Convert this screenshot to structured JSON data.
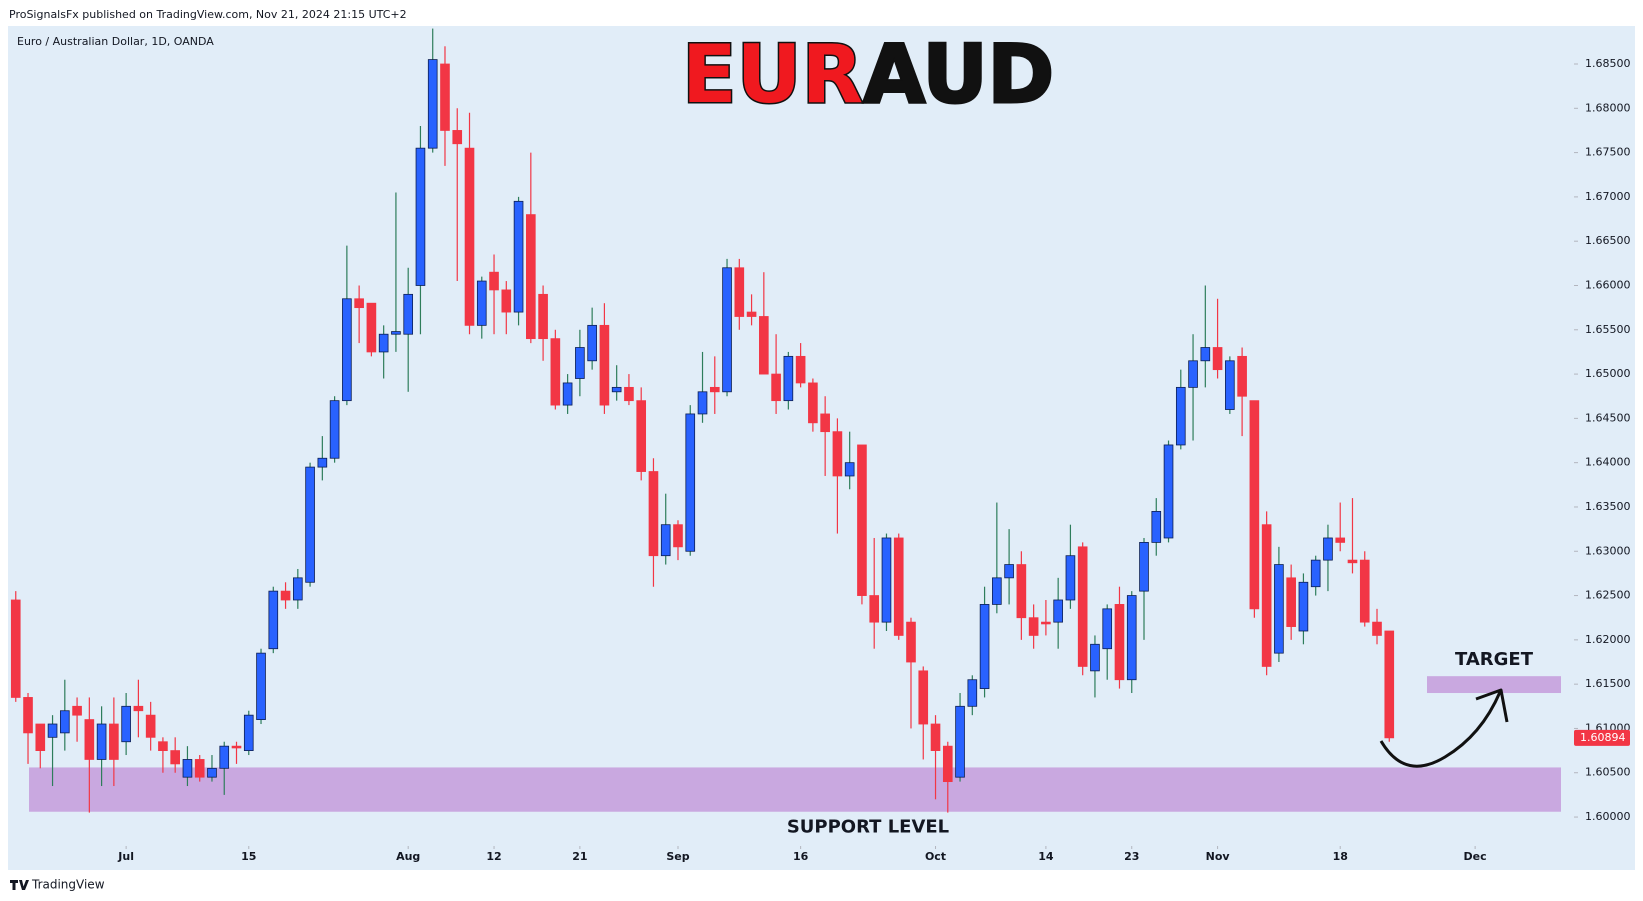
{
  "header": "ProSignalsFx published on TradingView.com, Nov 21, 2024 21:15 UTC+2",
  "footer": "TradingView",
  "chart_data": {
    "type": "candlestick",
    "symbol_label": "Euro / Australian Dollar, 1D, OANDA",
    "title_parts": [
      {
        "text": "EUR",
        "color": "#f0191f"
      },
      {
        "text": "AUD",
        "color": "#111111"
      }
    ],
    "up_color": "#2962ff",
    "down_color": "#f23645",
    "up_wick_color": "#2e7d5b",
    "grid": false,
    "open": [
      1.6245,
      1.6135,
      1.6105,
      1.609,
      1.6095,
      1.6125,
      1.611,
      1.6065,
      1.6105,
      1.6085,
      1.6125,
      1.6115,
      1.6085,
      1.6075,
      1.6045,
      1.6065,
      1.6045,
      1.6055,
      1.608,
      1.6075,
      1.611,
      1.619,
      1.6255,
      1.6245,
      1.6265,
      1.6395,
      1.6405,
      1.647,
      1.6585,
      1.658,
      1.6525,
      1.6545,
      1.6545,
      1.66,
      1.6755,
      1.685,
      1.6775,
      1.6755,
      1.6555,
      1.6615,
      1.6595,
      1.657,
      1.668,
      1.659,
      1.654,
      1.6465,
      1.6495,
      1.6515,
      1.6555,
      1.648,
      1.6485,
      1.647,
      1.639,
      1.6295,
      1.633,
      1.63,
      1.6455,
      1.6485,
      1.648,
      1.662,
      1.657,
      1.6565,
      1.65,
      1.647,
      1.652,
      1.649,
      1.6455,
      1.6435,
      1.6385,
      1.642,
      1.625,
      1.622,
      1.6315,
      1.622,
      1.6165,
      1.6105,
      1.608,
      1.6045,
      1.6125,
      1.6145,
      1.624,
      1.627,
      1.6285,
      1.6225,
      1.622,
      1.622,
      1.6245,
      1.6305,
      1.6165,
      1.619,
      1.624,
      1.6155,
      1.6255,
      1.631,
      1.6315,
      1.642,
      1.6485,
      1.6515,
      1.653,
      1.646,
      1.652,
      1.647,
      1.633,
      1.6185,
      1.627,
      1.621,
      1.626,
      1.629,
      1.6315,
      1.629,
      1.629,
      1.622,
      1.621
    ],
    "high": [
      1.6255,
      1.614,
      1.6105,
      1.6115,
      1.6155,
      1.6135,
      1.6135,
      1.6125,
      1.6135,
      1.614,
      1.6155,
      1.613,
      1.609,
      1.609,
      1.608,
      1.607,
      1.607,
      1.6085,
      1.6085,
      1.612,
      1.619,
      1.626,
      1.6265,
      1.628,
      1.64,
      1.643,
      1.6475,
      1.6645,
      1.66,
      1.658,
      1.6555,
      1.6705,
      1.662,
      1.678,
      1.689,
      1.687,
      1.68,
      1.6795,
      1.661,
      1.6635,
      1.6605,
      1.67,
      1.675,
      1.66,
      1.655,
      1.65,
      1.655,
      1.6575,
      1.658,
      1.651,
      1.65,
      1.6485,
      1.6405,
      1.6365,
      1.6335,
      1.6465,
      1.6525,
      1.652,
      1.663,
      1.663,
      1.659,
      1.6615,
      1.6545,
      1.6525,
      1.6535,
      1.6495,
      1.6475,
      1.645,
      1.6435,
      1.642,
      1.6315,
      1.632,
      1.632,
      1.6225,
      1.617,
      1.6115,
      1.6085,
      1.614,
      1.616,
      1.626,
      1.6355,
      1.6325,
      1.63,
      1.624,
      1.6245,
      1.627,
      1.633,
      1.631,
      1.6205,
      1.624,
      1.626,
      1.6255,
      1.6315,
      1.636,
      1.6425,
      1.6505,
      1.6545,
      1.66,
      1.6585,
      1.652,
      1.653,
      1.647,
      1.6345,
      1.6305,
      1.6285,
      1.6275,
      1.6295,
      1.633,
      1.6355,
      1.636,
      1.63,
      1.6235,
      1.621
    ],
    "low": [
      1.613,
      1.606,
      1.6055,
      1.6035,
      1.6075,
      1.6085,
      1.6005,
      1.6035,
      1.6035,
      1.607,
      1.609,
      1.6075,
      1.605,
      1.605,
      1.6035,
      1.604,
      1.604,
      1.6025,
      1.606,
      1.607,
      1.6105,
      1.6185,
      1.6235,
      1.6235,
      1.626,
      1.638,
      1.64,
      1.6465,
      1.6535,
      1.652,
      1.6495,
      1.6525,
      1.648,
      1.6545,
      1.675,
      1.6735,
      1.6605,
      1.6545,
      1.654,
      1.6545,
      1.6545,
      1.6555,
      1.6535,
      1.6515,
      1.646,
      1.6455,
      1.6475,
      1.6505,
      1.6455,
      1.647,
      1.6465,
      1.638,
      1.626,
      1.6285,
      1.629,
      1.6295,
      1.6445,
      1.6455,
      1.6475,
      1.655,
      1.6555,
      1.65,
      1.6455,
      1.646,
      1.6485,
      1.6435,
      1.6385,
      1.632,
      1.637,
      1.624,
      1.619,
      1.621,
      1.62,
      1.61,
      1.6065,
      1.602,
      1.6005,
      1.604,
      1.6115,
      1.6135,
      1.623,
      1.624,
      1.62,
      1.619,
      1.6205,
      1.619,
      1.6235,
      1.616,
      1.6135,
      1.6155,
      1.6145,
      1.614,
      1.62,
      1.6295,
      1.631,
      1.6415,
      1.6425,
      1.6485,
      1.6495,
      1.6455,
      1.643,
      1.6225,
      1.616,
      1.6175,
      1.62,
      1.6195,
      1.625,
      1.6255,
      1.63,
      1.6275,
      1.6215,
      1.6195,
      1.6085
    ],
    "close": [
      1.6135,
      1.6095,
      1.6075,
      1.6105,
      1.612,
      1.6115,
      1.6065,
      1.6105,
      1.6065,
      1.6125,
      1.612,
      1.609,
      1.6075,
      1.606,
      1.6065,
      1.6045,
      1.6055,
      1.608,
      1.6078,
      1.6115,
      1.6185,
      1.6255,
      1.6245,
      1.627,
      1.6395,
      1.6405,
      1.647,
      1.6585,
      1.6575,
      1.6525,
      1.6545,
      1.6548,
      1.659,
      1.6755,
      1.6855,
      1.6775,
      1.676,
      1.6555,
      1.6605,
      1.6595,
      1.657,
      1.6695,
      1.654,
      1.654,
      1.6465,
      1.649,
      1.653,
      1.6555,
      1.6465,
      1.6485,
      1.647,
      1.639,
      1.6295,
      1.633,
      1.6305,
      1.6455,
      1.648,
      1.648,
      1.662,
      1.6565,
      1.6565,
      1.65,
      1.647,
      1.652,
      1.649,
      1.6445,
      1.6435,
      1.6385,
      1.64,
      1.625,
      1.622,
      1.6315,
      1.6205,
      1.6175,
      1.6105,
      1.6075,
      1.604,
      1.6125,
      1.6155,
      1.624,
      1.627,
      1.6285,
      1.6225,
      1.6205,
      1.6218,
      1.6245,
      1.6295,
      1.617,
      1.6195,
      1.6235,
      1.6155,
      1.625,
      1.631,
      1.6345,
      1.642,
      1.6485,
      1.6515,
      1.653,
      1.6505,
      1.6515,
      1.6475,
      1.6235,
      1.617,
      1.6285,
      1.6215,
      1.6265,
      1.629,
      1.6315,
      1.631,
      1.6287,
      1.622,
      1.6205,
      1.60894
    ],
    "xlim": [
      -0.6,
      126.9
    ],
    "xticks": [
      {
        "value": 9,
        "label": "Jul"
      },
      {
        "value": 19,
        "label": "15"
      },
      {
        "value": 32,
        "label": "Aug"
      },
      {
        "value": 39,
        "label": "12"
      },
      {
        "value": 46,
        "label": "21"
      },
      {
        "value": 54,
        "label": "Sep"
      },
      {
        "value": 64,
        "label": "16"
      },
      {
        "value": 75,
        "label": "Oct"
      },
      {
        "value": 84,
        "label": "14"
      },
      {
        "value": 91,
        "label": "23"
      },
      {
        "value": 98,
        "label": "Nov"
      },
      {
        "value": 108,
        "label": "18"
      },
      {
        "value": 119,
        "label": "Dec"
      }
    ],
    "ylim": [
      1.59707,
      1.68929
    ],
    "yticks": [
      {
        "value": 1.6,
        "label": "1.60000"
      },
      {
        "value": 1.605,
        "label": "1.60500"
      },
      {
        "value": 1.61,
        "label": "1.61000"
      },
      {
        "value": 1.615,
        "label": "1.61500"
      },
      {
        "value": 1.62,
        "label": "1.62000"
      },
      {
        "value": 1.625,
        "label": "1.62500"
      },
      {
        "value": 1.63,
        "label": "1.63000"
      },
      {
        "value": 1.635,
        "label": "1.63500"
      },
      {
        "value": 1.64,
        "label": "1.64000"
      },
      {
        "value": 1.645,
        "label": "1.64500"
      },
      {
        "value": 1.65,
        "label": "1.65000"
      },
      {
        "value": 1.655,
        "label": "1.65500"
      },
      {
        "value": 1.66,
        "label": "1.66000"
      },
      {
        "value": 1.665,
        "label": "1.66500"
      },
      {
        "value": 1.67,
        "label": "1.67000"
      },
      {
        "value": 1.675,
        "label": "1.67500"
      },
      {
        "value": 1.68,
        "label": "1.68000"
      },
      {
        "value": 1.685,
        "label": "1.68500"
      }
    ],
    "zones": [
      {
        "label": "SUPPORT LEVEL",
        "low": 1.6006,
        "high": 1.6056,
        "color": "#c9a8e0"
      },
      {
        "label": "TARGET",
        "low": 1.614,
        "high": 1.6159,
        "color": "#c9a8e0"
      }
    ]
  }
}
